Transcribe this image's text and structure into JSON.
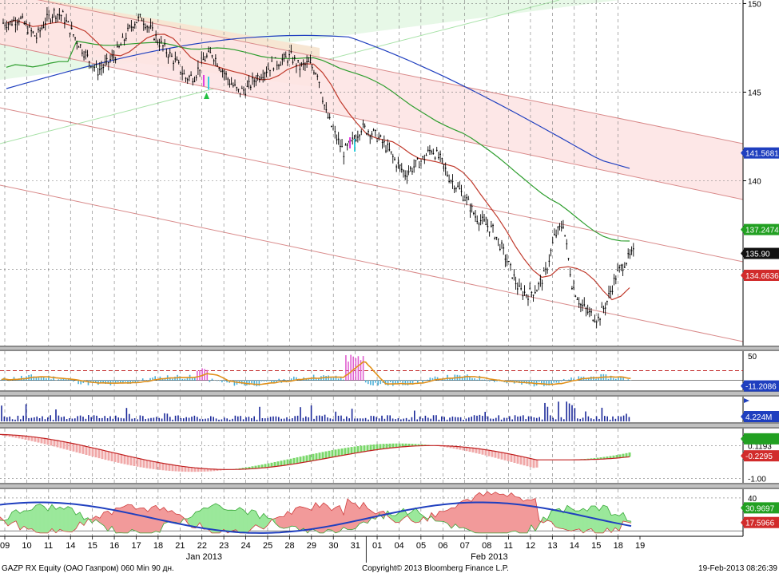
{
  "footer": {
    "ticker": "GAZP RX Equity (ОАО Газпром) 060 Min 90 дн.",
    "copyright": "Copyright© 2013 Bloomberg Finance L.P.",
    "timestamp": "19-Feb-2013 08:26:39"
  },
  "colors": {
    "price": "#000000",
    "ma_red": "#c0392b",
    "ma_green": "#2e9e2e",
    "ma_blue": "#1f3fbf",
    "channel_red_line": "#d98a8a",
    "channel_green_line": "#a8e2a8",
    "channel_red_fill": "#fde4e4",
    "channel_green_fill": "#e7f8e7",
    "channel_tan_fill": "#f7e6d3",
    "hist_blue": "#4ab0d8",
    "osc_orange": "#e0901a",
    "volume": "#1c2a9a",
    "macd_green": "#7ad86a",
    "macd_pink": "#f0a8a8",
    "dmi_green": "#9be89b",
    "dmi_red": "#f29a9a",
    "dmi_blue": "#1f3fbf",
    "tag_blue": "#1f3fbf",
    "tag_green": "#22a022",
    "tag_red": "#d12b2b",
    "tag_black": "#111111"
  },
  "chart_data": [
    {
      "type": "line",
      "panel": "price",
      "y_ticks": [
        140,
        145,
        150
      ],
      "y_range": [
        130.7,
        150.2
      ],
      "last_value_tags": [
        {
          "value": 141.5681,
          "text": "141.5681",
          "color": "blue"
        },
        {
          "value": 137.2474,
          "text": "137.2474",
          "color": "green"
        },
        {
          "value": 135.9,
          "text": "135.90",
          "color": "black"
        },
        {
          "value": 134.6636,
          "text": "134.6636",
          "color": "red"
        }
      ],
      "close_series": [
        148.9,
        149.2,
        148.6,
        148.1,
        149.0,
        149.5,
        149.3,
        148.4,
        147.6,
        146.8,
        146.2,
        146.6,
        147.1,
        148.0,
        148.9,
        149.2,
        148.5,
        147.8,
        147.2,
        146.6,
        145.8,
        145.9,
        146.8,
        147.2,
        146.4,
        145.6,
        145.0,
        145.2,
        145.8,
        146.2,
        146.6,
        146.8,
        147.0,
        146.4,
        146.6,
        146.1,
        143.8,
        142.6,
        141.6,
        142.2,
        143.0,
        142.8,
        142.4,
        141.8,
        141.0,
        140.4,
        140.8,
        141.2,
        141.8,
        141.2,
        140.2,
        139.6,
        138.9,
        138.0,
        137.6,
        137.2,
        136.2,
        135.0,
        133.8,
        133.6,
        133.9,
        134.8,
        136.8,
        137.6,
        134.2,
        133.0,
        132.5,
        132.2,
        133.2,
        134.6,
        135.4,
        135.9
      ]
    },
    {
      "type": "bar",
      "panel": "oscillator",
      "y_ticks": [
        0,
        50
      ],
      "y_range": [
        -20,
        60
      ],
      "last_value_tags": [
        {
          "value": -11.2086,
          "text": "-11.2086",
          "color": "blue"
        }
      ]
    },
    {
      "type": "bar",
      "panel": "volume",
      "last_value_tags": [
        {
          "value": 4.224,
          "text": "4.224M",
          "color": "blue"
        }
      ]
    },
    {
      "type": "line",
      "panel": "macd",
      "y_ticks": [
        0.1193,
        -1.0
      ],
      "y_tick_labels": [
        "0.1193",
        "-1.00"
      ],
      "last_value_tags": [
        {
          "value": 0.2,
          "text": "",
          "color": "green"
        },
        {
          "value": -0.2295,
          "text": "-0.2295",
          "color": "red"
        }
      ]
    },
    {
      "type": "area",
      "panel": "dmi",
      "y_ticks": [
        40
      ],
      "last_value_tags": [
        {
          "value": 30.9697,
          "text": "30.9697",
          "color": "green"
        },
        {
          "value": 17.5966,
          "text": "17.5966",
          "color": "red"
        }
      ]
    }
  ],
  "x_axis": {
    "day_labels": [
      "09",
      "10",
      "11",
      "14",
      "15",
      "16",
      "17",
      "18",
      "21",
      "22",
      "23",
      "24",
      "25",
      "28",
      "29",
      "30",
      "31",
      "01",
      "04",
      "05",
      "06",
      "07",
      "08",
      "11",
      "12",
      "13",
      "14",
      "15",
      "18",
      "19"
    ],
    "month_labels": [
      {
        "text": "Jan 2013",
        "day": "22"
      },
      {
        "text": "Feb 2013",
        "day": "08"
      }
    ]
  }
}
